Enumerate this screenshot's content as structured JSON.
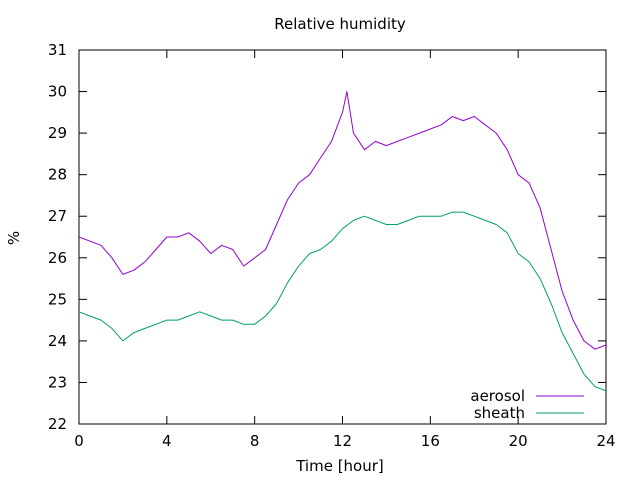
{
  "chart_data": {
    "type": "line",
    "title": "Relative humidity",
    "xlabel": "Time [hour]",
    "ylabel": "%",
    "xlim": [
      0,
      24
    ],
    "ylim": [
      22,
      31
    ],
    "xticks": [
      0,
      4,
      8,
      12,
      16,
      20,
      24
    ],
    "yticks": [
      22,
      23,
      24,
      25,
      26,
      27,
      28,
      29,
      30,
      31
    ],
    "grid": false,
    "legend_position": "bottom-right",
    "series": [
      {
        "name": "aerosol",
        "color": "#9400d3",
        "x": [
          0,
          0.5,
          1,
          1.5,
          2,
          2.5,
          3,
          3.5,
          4,
          4.5,
          5,
          5.5,
          6,
          6.5,
          7,
          7.5,
          8,
          8.5,
          9,
          9.5,
          10,
          10.5,
          11,
          11.5,
          12,
          12.2,
          12.5,
          13,
          13.5,
          14,
          14.5,
          15,
          15.5,
          16,
          16.5,
          17,
          17.5,
          18,
          18.5,
          19,
          19.5,
          20,
          20.5,
          21,
          21.5,
          22,
          22.5,
          23,
          23.5,
          24
        ],
        "y": [
          26.5,
          26.4,
          26.3,
          26.0,
          25.6,
          25.7,
          25.9,
          26.2,
          26.5,
          26.5,
          26.6,
          26.4,
          26.1,
          26.3,
          26.2,
          25.8,
          26.0,
          26.2,
          26.8,
          27.4,
          27.8,
          28.0,
          28.4,
          28.8,
          29.5,
          30.0,
          29.0,
          28.6,
          28.8,
          28.7,
          28.8,
          28.9,
          29.0,
          29.1,
          29.2,
          29.4,
          29.3,
          29.4,
          29.2,
          29.0,
          28.6,
          28.0,
          27.8,
          27.2,
          26.2,
          25.2,
          24.5,
          24.0,
          23.8,
          23.9
        ]
      },
      {
        "name": "sheath",
        "color": "#009e73",
        "x": [
          0,
          0.5,
          1,
          1.5,
          2,
          2.5,
          3,
          3.5,
          4,
          4.5,
          5,
          5.5,
          6,
          6.5,
          7,
          7.5,
          8,
          8.5,
          9,
          9.5,
          10,
          10.5,
          11,
          11.5,
          12,
          12.5,
          13,
          13.5,
          14,
          14.5,
          15,
          15.5,
          16,
          16.5,
          17,
          17.5,
          18,
          18.5,
          19,
          19.5,
          20,
          20.5,
          21,
          21.5,
          22,
          22.5,
          23,
          23.5,
          24
        ],
        "y": [
          24.7,
          24.6,
          24.5,
          24.3,
          24.0,
          24.2,
          24.3,
          24.4,
          24.5,
          24.5,
          24.6,
          24.7,
          24.6,
          24.5,
          24.5,
          24.4,
          24.4,
          24.6,
          24.9,
          25.4,
          25.8,
          26.1,
          26.2,
          26.4,
          26.7,
          26.9,
          27.0,
          26.9,
          26.8,
          26.8,
          26.9,
          27.0,
          27.0,
          27.0,
          27.1,
          27.1,
          27.0,
          26.9,
          26.8,
          26.6,
          26.1,
          25.9,
          25.5,
          24.9,
          24.2,
          23.7,
          23.2,
          22.9,
          22.8
        ]
      }
    ]
  }
}
